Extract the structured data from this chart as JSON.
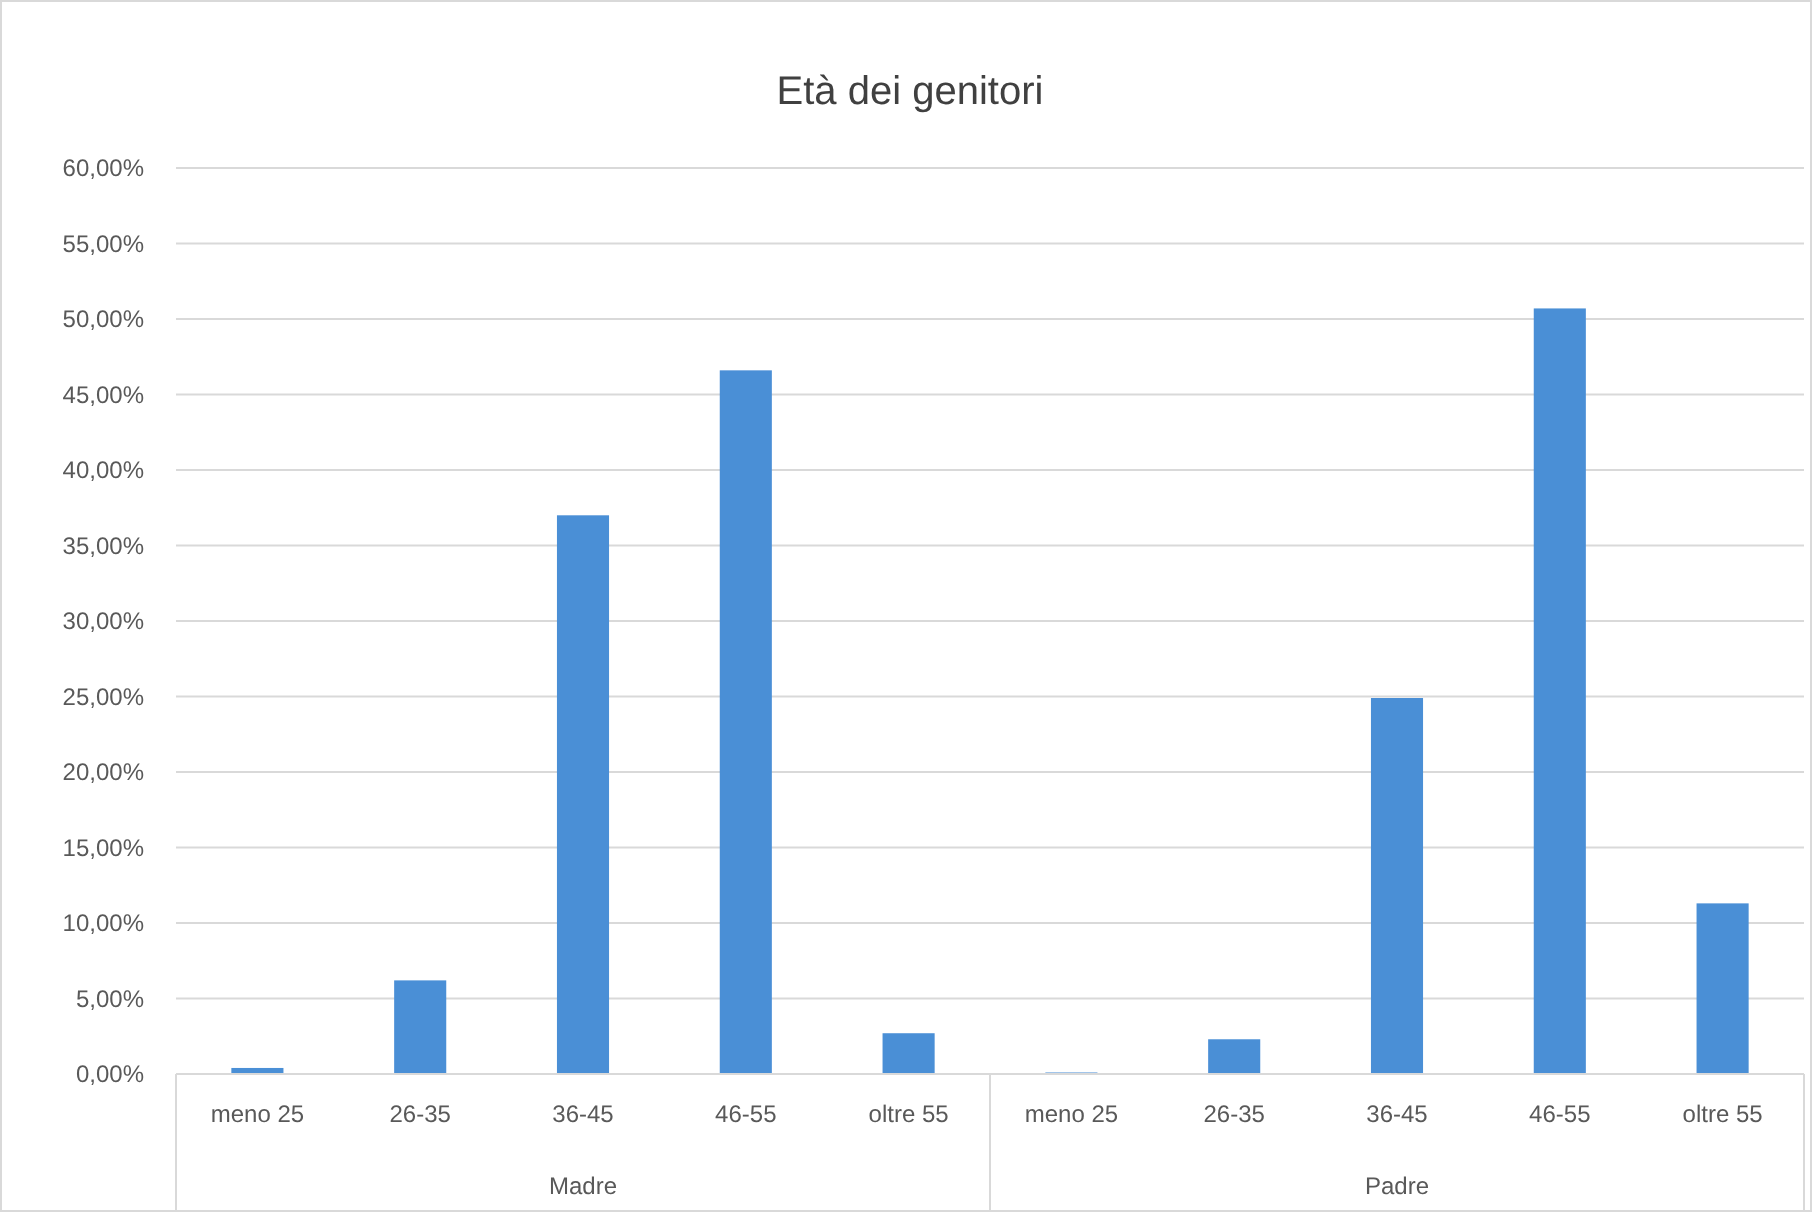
{
  "chart_data": {
    "type": "bar",
    "title": "Età dei genitori",
    "categories": [
      "meno 25",
      "26-35",
      "36-45",
      "46-55",
      "oltre 55",
      "meno 25",
      "26-35",
      "36-45",
      "46-55",
      "oltre 55"
    ],
    "values": [
      0.4,
      6.2,
      37.0,
      46.6,
      2.7,
      0.1,
      2.3,
      24.9,
      50.7,
      11.3
    ],
    "color": "#4a8fd6",
    "ylim": [
      0,
      60
    ],
    "yticks": [
      {
        "value": 0,
        "label": "0,00%"
      },
      {
        "value": 5,
        "label": "5,00%"
      },
      {
        "value": 10,
        "label": "10,00%"
      },
      {
        "value": 15,
        "label": "15,00%"
      },
      {
        "value": 20,
        "label": "20,00%"
      },
      {
        "value": 25,
        "label": "25,00%"
      },
      {
        "value": 30,
        "label": "30,00%"
      },
      {
        "value": 35,
        "label": "35,00%"
      },
      {
        "value": 40,
        "label": "40,00%"
      },
      {
        "value": 45,
        "label": "45,00%"
      },
      {
        "value": 50,
        "label": "50,00%"
      },
      {
        "value": 55,
        "label": "55,00%"
      },
      {
        "value": 60,
        "label": "60,00%"
      }
    ],
    "grid": "y",
    "annotations": [
      "Madre",
      "Padre"
    ]
  }
}
